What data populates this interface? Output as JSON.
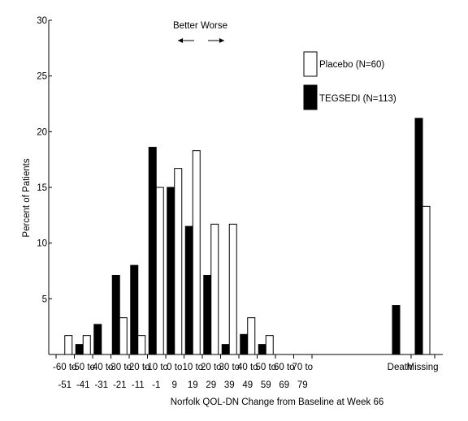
{
  "chart_data": {
    "type": "bar",
    "title": "",
    "xlabel": "Norfolk QOL-DN Change from Baseline at Week 66",
    "ylabel": "Percent of Patients",
    "ylim": [
      0,
      30
    ],
    "yticks": [
      "5",
      "10",
      "15",
      "20",
      "25",
      "30"
    ],
    "grid": false,
    "legend_placement": "top-right",
    "categories": [
      [
        "-60 to",
        "-51"
      ],
      [
        "-50 to",
        "-41"
      ],
      [
        "-40 to",
        "-31"
      ],
      [
        "-30 to",
        "-21"
      ],
      [
        "-20 to",
        "-11"
      ],
      [
        "-10 to",
        "-1"
      ],
      [
        "0 to",
        "9"
      ],
      [
        "10 to",
        "19"
      ],
      [
        "20 to",
        "29"
      ],
      [
        "30 to",
        "39"
      ],
      [
        "40 to",
        "49"
      ],
      [
        "50 to",
        "59"
      ],
      [
        "60 to",
        "69"
      ],
      [
        "70 to",
        "79"
      ],
      [
        "Death",
        ""
      ],
      [
        "Missing",
        ""
      ]
    ],
    "series": [
      {
        "name": "TEGSEDI (N=113)",
        "color": "#000000",
        "values": [
          0,
          0.9,
          2.7,
          7.1,
          8.0,
          18.6,
          15.0,
          11.5,
          7.1,
          0.9,
          1.8,
          0.9,
          0,
          0,
          4.4,
          21.2
        ]
      },
      {
        "name": "Placebo (N=60)",
        "color": "#ffffff",
        "values": [
          1.7,
          1.7,
          0,
          3.3,
          1.7,
          15.0,
          16.7,
          18.3,
          11.7,
          11.7,
          3.3,
          1.7,
          0,
          0,
          0,
          13.3
        ]
      }
    ],
    "annotations": {
      "better": "Better",
      "worse": "Worse",
      "left_arrow": "⟵",
      "right_arrow": "⟶"
    }
  }
}
